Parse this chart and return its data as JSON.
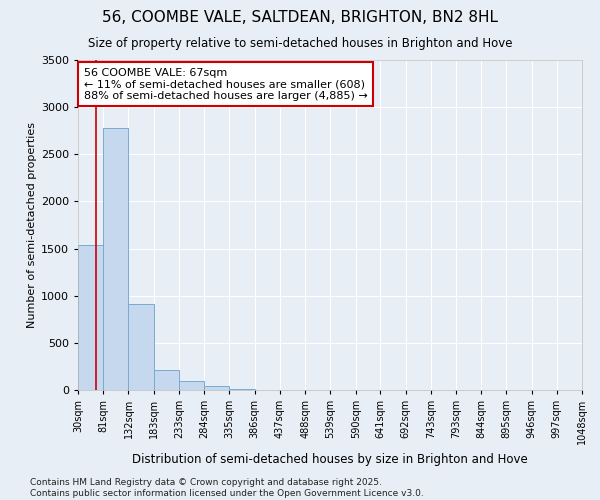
{
  "title": "56, COOMBE VALE, SALTDEAN, BRIGHTON, BN2 8HL",
  "subtitle": "Size of property relative to semi-detached houses in Brighton and Hove",
  "xlabel": "Distribution of semi-detached houses by size in Brighton and Hove",
  "ylabel": "Number of semi-detached properties",
  "bins": [
    30,
    81,
    132,
    183,
    234,
    285,
    336,
    387,
    438,
    489,
    540,
    591,
    641,
    692,
    743,
    794,
    845,
    895,
    946,
    997,
    1048
  ],
  "bin_labels": [
    "30sqm",
    "81sqm",
    "132sqm",
    "183sqm",
    "233sqm",
    "284sqm",
    "335sqm",
    "386sqm",
    "437sqm",
    "488sqm",
    "539sqm",
    "590sqm",
    "641sqm",
    "692sqm",
    "743sqm",
    "793sqm",
    "844sqm",
    "895sqm",
    "946sqm",
    "997sqm",
    "1048sqm"
  ],
  "values": [
    1540,
    2780,
    910,
    215,
    100,
    40,
    10,
    0,
    0,
    0,
    0,
    0,
    0,
    0,
    0,
    0,
    0,
    0,
    0,
    0
  ],
  "bar_color": "#c5d8ed",
  "bar_edge_color": "#7aaad0",
  "property_value": 67,
  "property_line_color": "#cc0000",
  "annotation_title": "56 COOMBE VALE: 67sqm",
  "annotation_line1": "← 11% of semi-detached houses are smaller (608)",
  "annotation_line2": "88% of semi-detached houses are larger (4,885) →",
  "annotation_box_color": "#cc0000",
  "background_color": "#e8eef5",
  "grid_color": "#ffffff",
  "ylim": [
    0,
    3500
  ],
  "yticks": [
    0,
    500,
    1000,
    1500,
    2000,
    2500,
    3000,
    3500
  ],
  "footer1": "Contains HM Land Registry data © Crown copyright and database right 2025.",
  "footer2": "Contains public sector information licensed under the Open Government Licence v3.0."
}
